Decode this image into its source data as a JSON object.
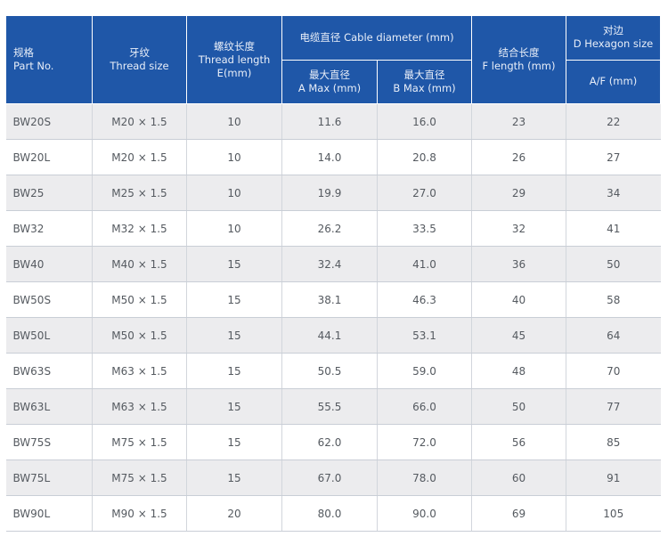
{
  "header": {
    "part_no": {
      "cn": "规格",
      "en": "Part No."
    },
    "thread_size": {
      "cn": "牙纹",
      "en": "Thread size"
    },
    "thread_length": {
      "cn": "螺纹长度",
      "en": "Thread length",
      "en2": "E(mm)"
    },
    "cable_diameter": {
      "label": "电缆直径 Cable diameter (mm)"
    },
    "a_max": {
      "cn": "最大直径",
      "en": "A Max (mm)"
    },
    "b_max": {
      "cn": "最大直径",
      "en": "B Max (mm)"
    },
    "f_length": {
      "cn": "结合长度",
      "en": "F length (mm)"
    },
    "hexagon": {
      "cn": "对边",
      "en": "D Hexagon size"
    },
    "af": {
      "en": "A/F (mm)"
    }
  },
  "rows": [
    {
      "part": "BW20S",
      "thread": "M20 × 1.5",
      "e": "10",
      "a": "11.6",
      "b": "16.0",
      "f": "23",
      "d": "22"
    },
    {
      "part": "BW20L",
      "thread": "M20 × 1.5",
      "e": "10",
      "a": "14.0",
      "b": "20.8",
      "f": "26",
      "d": "27"
    },
    {
      "part": "BW25",
      "thread": "M25 × 1.5",
      "e": "10",
      "a": "19.9",
      "b": "27.0",
      "f": "29",
      "d": "34"
    },
    {
      "part": "BW32",
      "thread": "M32 × 1.5",
      "e": "10",
      "a": "26.2",
      "b": "33.5",
      "f": "32",
      "d": "41"
    },
    {
      "part": "BW40",
      "thread": "M40 × 1.5",
      "e": "15",
      "a": "32.4",
      "b": "41.0",
      "f": "36",
      "d": "50"
    },
    {
      "part": "BW50S",
      "thread": "M50 × 1.5",
      "e": "15",
      "a": "38.1",
      "b": "46.3",
      "f": "40",
      "d": "58"
    },
    {
      "part": "BW50L",
      "thread": "M50 × 1.5",
      "e": "15",
      "a": "44.1",
      "b": "53.1",
      "f": "45",
      "d": "64"
    },
    {
      "part": "BW63S",
      "thread": "M63 × 1.5",
      "e": "15",
      "a": "50.5",
      "b": "59.0",
      "f": "48",
      "d": "70"
    },
    {
      "part": "BW63L",
      "thread": "M63 × 1.5",
      "e": "15",
      "a": "55.5",
      "b": "66.0",
      "f": "50",
      "d": "77"
    },
    {
      "part": "BW75S",
      "thread": "M75 × 1.5",
      "e": "15",
      "a": "62.0",
      "b": "72.0",
      "f": "56",
      "d": "85"
    },
    {
      "part": "BW75L",
      "thread": "M75 × 1.5",
      "e": "15",
      "a": "67.0",
      "b": "78.0",
      "f": "60",
      "d": "91"
    },
    {
      "part": "BW90L",
      "thread": "M90 × 1.5",
      "e": "20",
      "a": "80.0",
      "b": "90.0",
      "f": "69",
      "d": "105"
    }
  ],
  "colors": {
    "header_bg": "#1f57a8",
    "row_alt": "#ececee"
  }
}
